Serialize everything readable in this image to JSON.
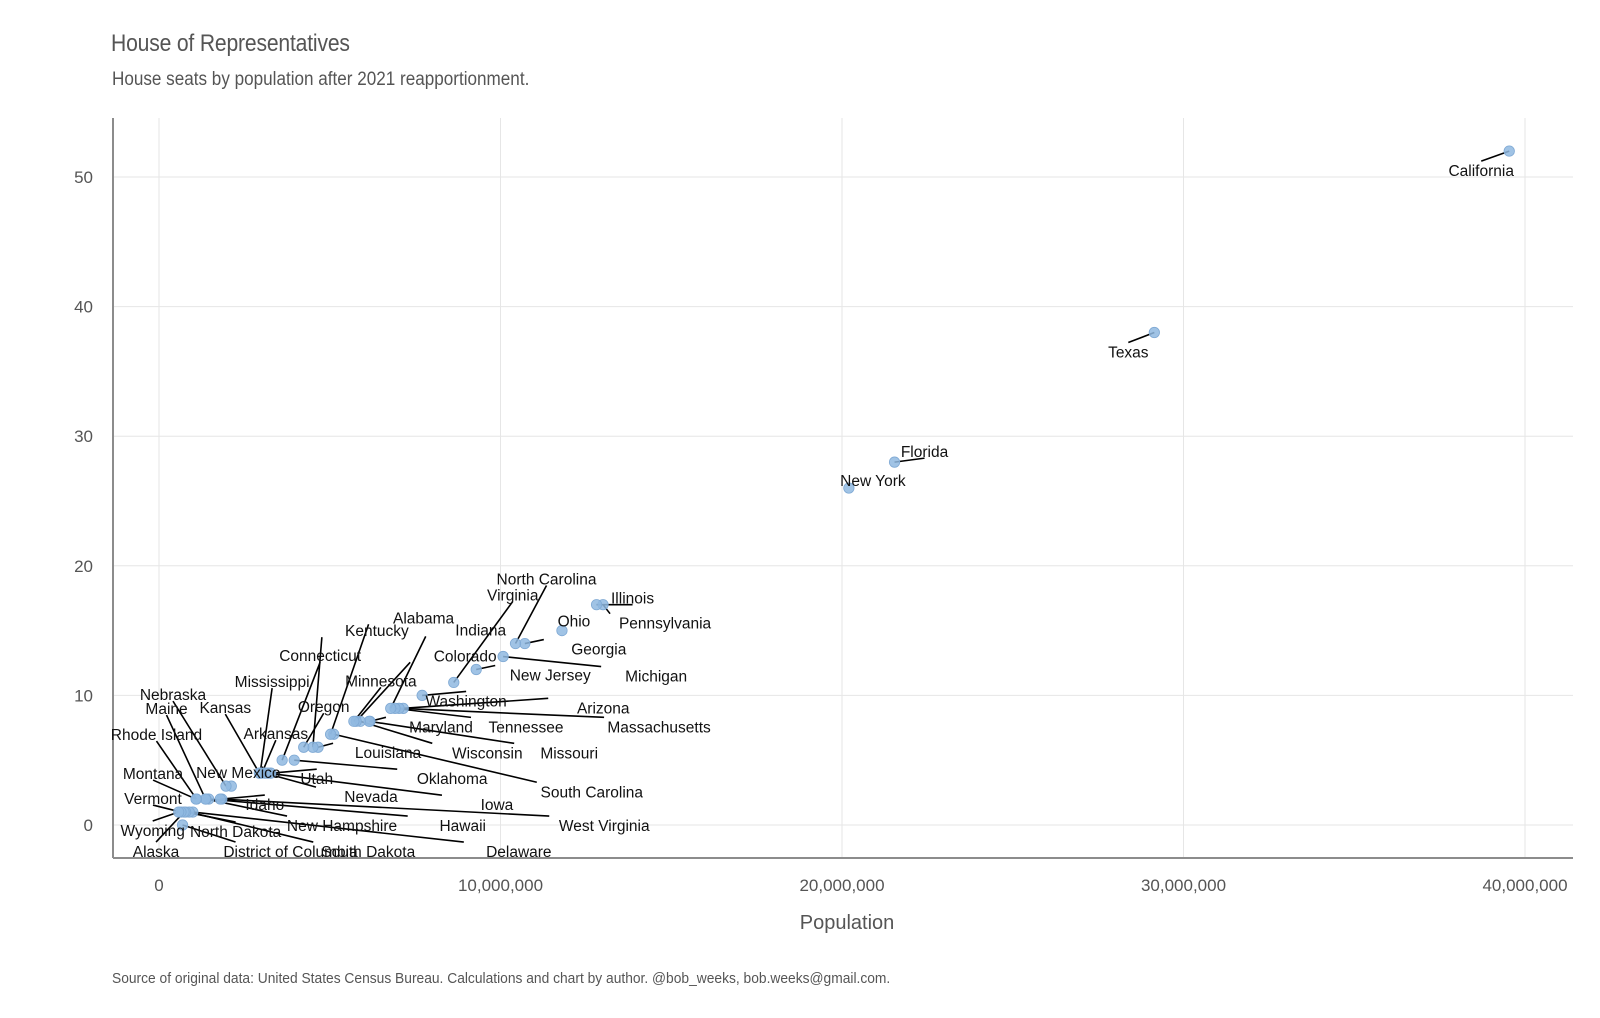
{
  "chart_data": {
    "type": "scatter",
    "title": "House of Representatives",
    "subtitle": "House seats by population after 2021 reapportionment.",
    "caption": "Source of original data: United States Census Bureau. Calculations and chart by author. @bob_weeks, bob.weeks@gmail.com.",
    "xlabel": "Population",
    "ylabel": "",
    "xlim": [
      -1300000,
      41500000
    ],
    "ylim": [
      -2.5,
      54.5
    ],
    "x_ticks": [
      0,
      10000000,
      20000000,
      30000000,
      40000000
    ],
    "x_tick_labels": [
      "0",
      "10,000,000",
      "20,000,000",
      "30,000,000",
      "40,000,000"
    ],
    "y_ticks": [
      0,
      10,
      20,
      30,
      40,
      50
    ],
    "y_tick_labels": [
      "0",
      "10",
      "20",
      "30",
      "40",
      "50"
    ],
    "grid": true,
    "point_color": "#8fb8e0",
    "points": [
      {
        "label": "California",
        "x": 39538223,
        "y": 52
      },
      {
        "label": "Texas",
        "x": 29145505,
        "y": 38
      },
      {
        "label": "Florida",
        "x": 21538187,
        "y": 28
      },
      {
        "label": "New York",
        "x": 20201249,
        "y": 26
      },
      {
        "label": "Pennsylvania",
        "x": 13002700,
        "y": 17
      },
      {
        "label": "Illinois",
        "x": 12812508,
        "y": 17
      },
      {
        "label": "Ohio",
        "x": 11799448,
        "y": 15
      },
      {
        "label": "Georgia",
        "x": 10711908,
        "y": 14
      },
      {
        "label": "North Carolina",
        "x": 10439388,
        "y": 14
      },
      {
        "label": "Michigan",
        "x": 10077331,
        "y": 13
      },
      {
        "label": "New Jersey",
        "x": 9288994,
        "y": 12
      },
      {
        "label": "Virginia",
        "x": 8631393,
        "y": 11
      },
      {
        "label": "Washington",
        "x": 7705281,
        "y": 10
      },
      {
        "label": "Arizona",
        "x": 7151502,
        "y": 9
      },
      {
        "label": "Massachusetts",
        "x": 7029917,
        "y": 9
      },
      {
        "label": "Tennessee",
        "x": 6910840,
        "y": 9
      },
      {
        "label": "Indiana",
        "x": 6785528,
        "y": 9
      },
      {
        "label": "Maryland",
        "x": 6177224,
        "y": 8
      },
      {
        "label": "Missouri",
        "x": 6154913,
        "y": 8
      },
      {
        "label": "Wisconsin",
        "x": 5893718,
        "y": 8
      },
      {
        "label": "Colorado",
        "x": 5773714,
        "y": 8
      },
      {
        "label": "Minnesota",
        "x": 5706494,
        "y": 8
      },
      {
        "label": "South Carolina",
        "x": 5118425,
        "y": 7
      },
      {
        "label": "Alabama",
        "x": 5024279,
        "y": 7
      },
      {
        "label": "Louisiana",
        "x": 4657757,
        "y": 6
      },
      {
        "label": "Kentucky",
        "x": 4505836,
        "y": 6
      },
      {
        "label": "Oregon",
        "x": 4237256,
        "y": 6
      },
      {
        "label": "Oklahoma",
        "x": 3959353,
        "y": 5
      },
      {
        "label": "Connecticut",
        "x": 3605944,
        "y": 5
      },
      {
        "label": "Utah",
        "x": 3271616,
        "y": 4
      },
      {
        "label": "Iowa",
        "x": 3190369,
        "y": 4
      },
      {
        "label": "Nevada",
        "x": 3104614,
        "y": 4
      },
      {
        "label": "Arkansas",
        "x": 3011524,
        "y": 4
      },
      {
        "label": "Mississippi",
        "x": 2961279,
        "y": 4
      },
      {
        "label": "Kansas",
        "x": 2937880,
        "y": 4
      },
      {
        "label": "New Mexico",
        "x": 2117522,
        "y": 3
      },
      {
        "label": "Nebraska",
        "x": 1961504,
        "y": 3
      },
      {
        "label": "Idaho",
        "x": 1839106,
        "y": 2
      },
      {
        "label": "West Virginia",
        "x": 1793716,
        "y": 2
      },
      {
        "label": "Hawaii",
        "x": 1455271,
        "y": 2
      },
      {
        "label": "New Hampshire",
        "x": 1377529,
        "y": 2
      },
      {
        "label": "Maine",
        "x": 1362359,
        "y": 2
      },
      {
        "label": "Rhode Island",
        "x": 1097379,
        "y": 2
      },
      {
        "label": "Montana",
        "x": 1084225,
        "y": 2
      },
      {
        "label": "Delaware",
        "x": 989948,
        "y": 1
      },
      {
        "label": "South Dakota",
        "x": 886667,
        "y": 1
      },
      {
        "label": "North Dakota",
        "x": 779094,
        "y": 1
      },
      {
        "label": "Alaska",
        "x": 733391,
        "y": 1
      },
      {
        "label": "District of Columbia",
        "x": 689545,
        "y": 0
      },
      {
        "label": "Vermont",
        "x": 643077,
        "y": 1
      },
      {
        "label": "Wyoming",
        "x": 576851,
        "y": 1
      }
    ]
  }
}
